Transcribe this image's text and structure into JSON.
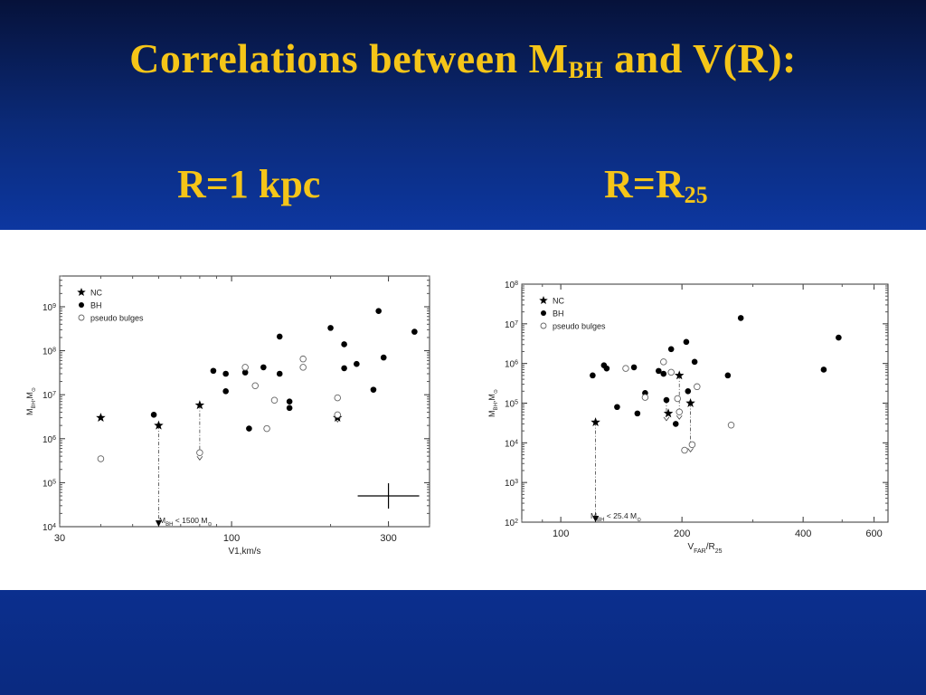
{
  "slide": {
    "title_main": "Correlations between M",
    "title_sub": "BH",
    "title_end": " and V(R):",
    "subtitle_left": "R=1 kpc",
    "subtitle_right_main": "R=R",
    "subtitle_right_sub": "25"
  },
  "chart_data": [
    {
      "type": "scatter",
      "xlabel": "V1,km/s",
      "ylabel": "M_BH,M_sun",
      "xscale": "log",
      "yscale": "log",
      "xlim": [
        30,
        400
      ],
      "ylim": [
        10000,
        5000000000
      ],
      "xticks": [
        {
          "v": 30,
          "label": "30"
        },
        {
          "v": 100,
          "label": "100"
        },
        {
          "v": 300,
          "label": "300"
        }
      ],
      "yticks": [
        {
          "v": 10000,
          "base": "10",
          "exp": "4"
        },
        {
          "v": 100000,
          "base": "10",
          "exp": "5"
        },
        {
          "v": 1000000,
          "base": "10",
          "exp": "6"
        },
        {
          "v": 10000000,
          "base": "10",
          "exp": "7"
        },
        {
          "v": 100000000,
          "base": "10",
          "exp": "8"
        },
        {
          "v": 1000000000,
          "base": "10",
          "exp": "9"
        }
      ],
      "legend": [
        {
          "marker": "star",
          "label": "NC"
        },
        {
          "marker": "filled",
          "label": "BH"
        },
        {
          "marker": "open",
          "label": "pseudo bulges"
        }
      ],
      "legend_position": "top-left",
      "annotation": "M_BH < 1500 M_sun",
      "series": [
        {
          "name": "NC",
          "marker": "star",
          "points": [
            [
              40,
              3000000
            ],
            [
              60,
              2000000
            ],
            [
              80,
              5800000
            ],
            [
              210,
              3000000
            ]
          ]
        },
        {
          "name": "BH",
          "marker": "filled",
          "points": [
            [
              58,
              3500000
            ],
            [
              88,
              35000000
            ],
            [
              96,
              30000000
            ],
            [
              96,
              12000000
            ],
            [
              110,
              32000000
            ],
            [
              113,
              1700000
            ],
            [
              125,
              42000000
            ],
            [
              140,
              210000000
            ],
            [
              140,
              30000000
            ],
            [
              150,
              7000000
            ],
            [
              150,
              5000000
            ],
            [
              200,
              330000000
            ],
            [
              220,
              140000000
            ],
            [
              220,
              40000000
            ],
            [
              240,
              50000000
            ],
            [
              270,
              13000000
            ],
            [
              280,
              800000000
            ],
            [
              290,
              70000000
            ],
            [
              360,
              270000000
            ]
          ]
        },
        {
          "name": "pseudo bulges",
          "marker": "open",
          "points": [
            [
              40,
              350000
            ],
            [
              80,
              480000
            ],
            [
              110,
              42000000
            ],
            [
              118,
              16000000
            ],
            [
              128,
              1700000
            ],
            [
              135,
              7500000
            ],
            [
              165,
              65000000
            ],
            [
              165,
              42000000
            ],
            [
              210,
              8500000
            ],
            [
              210,
              3500000
            ]
          ]
        }
      ],
      "upper_limits": [
        {
          "x": 60,
          "from": 2000000,
          "to": 10000
        },
        {
          "x": 80,
          "from": 5800000,
          "to": 480000
        },
        {
          "x": 210,
          "from": 3000000,
          "to": 3500000
        }
      ],
      "error_bar": {
        "x": 300,
        "y": 50000
      }
    },
    {
      "type": "scatter",
      "xlabel": "V_FAR/R_25",
      "ylabel": "M_BH,M_sun",
      "xscale": "log",
      "yscale": "log",
      "xlim": [
        80,
        650
      ],
      "ylim": [
        100,
        100000000
      ],
      "xticks": [
        {
          "v": 100,
          "label": "100"
        },
        {
          "v": 200,
          "label": "200"
        },
        {
          "v": 400,
          "label": "400"
        },
        {
          "v": 600,
          "label": "600"
        }
      ],
      "yticks": [
        {
          "v": 100,
          "base": "10",
          "exp": "2"
        },
        {
          "v": 1000,
          "base": "10",
          "exp": "3"
        },
        {
          "v": 10000,
          "base": "10",
          "exp": "4"
        },
        {
          "v": 100000,
          "base": "10",
          "exp": "5"
        },
        {
          "v": 1000000,
          "base": "10",
          "exp": "6"
        },
        {
          "v": 10000000,
          "base": "10",
          "exp": "7"
        },
        {
          "v": 100000000,
          "base": "10",
          "exp": "8"
        }
      ],
      "legend": [
        {
          "marker": "star",
          "label": "NC"
        },
        {
          "marker": "filled",
          "label": "BH"
        },
        {
          "marker": "open",
          "label": "pseudo bulges"
        }
      ],
      "legend_position": "top-left",
      "annotation": "M_BH < 25.4 M_sun",
      "series": [
        {
          "name": "NC",
          "marker": "star",
          "points": [
            [
              122,
              33000
            ],
            [
              197,
              500000
            ],
            [
              185,
              55000
            ],
            [
              210,
              100000
            ]
          ]
        },
        {
          "name": "BH",
          "marker": "filled",
          "points": [
            [
              120,
              500000
            ],
            [
              128,
              900000
            ],
            [
              130,
              750000
            ],
            [
              138,
              80000
            ],
            [
              152,
              800000
            ],
            [
              155,
              55000
            ],
            [
              162,
              180000
            ],
            [
              175,
              650000
            ],
            [
              180,
              550000
            ],
            [
              183,
              120000
            ],
            [
              188,
              2300000
            ],
            [
              193,
              30000
            ],
            [
              205,
              3500000
            ],
            [
              207,
              200000
            ],
            [
              215,
              1100000
            ],
            [
              260,
              500000
            ],
            [
              280,
              14000000
            ],
            [
              450,
              700000
            ],
            [
              490,
              4500000
            ]
          ]
        },
        {
          "name": "pseudo bulges",
          "marker": "open",
          "points": [
            [
              145,
              750000
            ],
            [
              162,
              140000
            ],
            [
              180,
              1100000
            ],
            [
              188,
              600000
            ],
            [
              195,
              130000
            ],
            [
              197,
              60000
            ],
            [
              203,
              6500
            ],
            [
              212,
              9000
            ],
            [
              218,
              260000
            ],
            [
              265,
              28000
            ]
          ]
        }
      ],
      "upper_limits": [
        {
          "x": 122,
          "from": 33000,
          "to": 100
        },
        {
          "x": 183,
          "from": 120000,
          "to": 55000
        },
        {
          "x": 197,
          "from": 500000,
          "to": 60000
        },
        {
          "x": 210,
          "from": 100000,
          "to": 9000
        }
      ]
    }
  ]
}
